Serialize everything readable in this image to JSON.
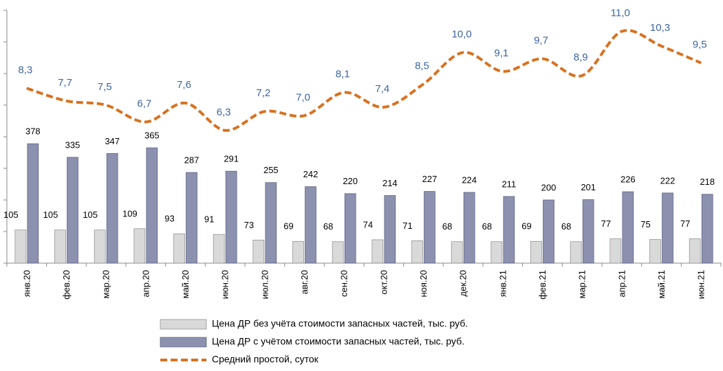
{
  "chart_data": {
    "type": "bar",
    "categories": [
      "янв.20",
      "фев.20",
      "мар.20",
      "апр.20",
      "май.20",
      "июн.20",
      "июл.20",
      "авг.20",
      "сен.20",
      "окт.20",
      "ноя.20",
      "дек.20",
      "янв.21",
      "фев.21",
      "мар.21",
      "апр.21",
      "май.21",
      "июн.21"
    ],
    "series": [
      {
        "name": "Цена ДР без учёта стоимости запасных частей, тыс. руб.",
        "color": "#d9d9d9",
        "values": [
          105,
          105,
          105,
          109,
          93,
          91,
          73,
          69,
          68,
          74,
          71,
          68,
          68,
          69,
          68,
          77,
          75,
          77
        ]
      },
      {
        "name": "Цена ДР с учётом стоимости запасных частей, тыс. руб.",
        "color": "#8c91b0",
        "values": [
          378,
          335,
          347,
          365,
          287,
          291,
          255,
          242,
          220,
          214,
          227,
          224,
          211,
          200,
          201,
          226,
          222,
          218
        ]
      },
      {
        "name": "Средний простой, суток",
        "type": "line",
        "axis": "y2",
        "color": "#d8711f",
        "values": [
          8.3,
          7.7,
          7.5,
          6.7,
          7.6,
          6.3,
          7.2,
          7.0,
          8.1,
          7.4,
          8.5,
          10.0,
          9.1,
          9.7,
          8.9,
          11.0,
          10.3,
          9.5
        ],
        "value_labels": [
          "8,3",
          "7,7",
          "7,5",
          "6,7",
          "7,6",
          "6,3",
          "7,2",
          "7,0",
          "8,1",
          "7,4",
          "8,5",
          "10,0",
          "9,1",
          "9,7",
          "8,9",
          "11,0",
          "10,3",
          "9,5"
        ]
      }
    ],
    "ylim": [
      0,
      800
    ],
    "y2lim": [
      0,
      12
    ],
    "legend": "bottom"
  }
}
